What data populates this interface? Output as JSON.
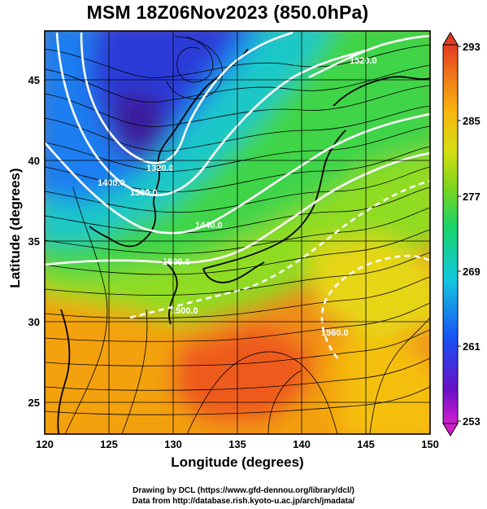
{
  "title": "MSM 18Z06Nov2023 (850.0hPa)",
  "x_axis": {
    "label": "Longitude (degrees)",
    "ticks": [
      "120",
      "125",
      "130",
      "135",
      "140",
      "145",
      "150"
    ],
    "range": [
      120,
      150
    ]
  },
  "y_axis": {
    "label": "Latitude  (degrees)",
    "ticks": [
      "25",
      "30",
      "35",
      "40",
      "45"
    ],
    "range": [
      22.5,
      47.5
    ]
  },
  "colorbar": {
    "ticks": [
      "293",
      "285",
      "277",
      "269",
      "261",
      "253"
    ],
    "min": 253,
    "max": 293,
    "palette": [
      "#d11fcf",
      "#3a10c8",
      "#1a5ef5",
      "#12c8de",
      "#18d36a",
      "#7ad41c",
      "#d5de12",
      "#f7b80e",
      "#f0761a",
      "#e23a22"
    ]
  },
  "contour_labels": [
    "1320.0",
    "1380.0",
    "1400.0",
    "1440.0",
    "1500.0",
    "1500.0",
    "1520.0",
    "1560.0"
  ],
  "credits": {
    "line1": "Drawing by DCL (https://www.gfd-dennou.org/library/dcl/)",
    "line2": "Data from http://database.rish.kyoto-u.ac.jp/arch/jmadata/"
  }
}
